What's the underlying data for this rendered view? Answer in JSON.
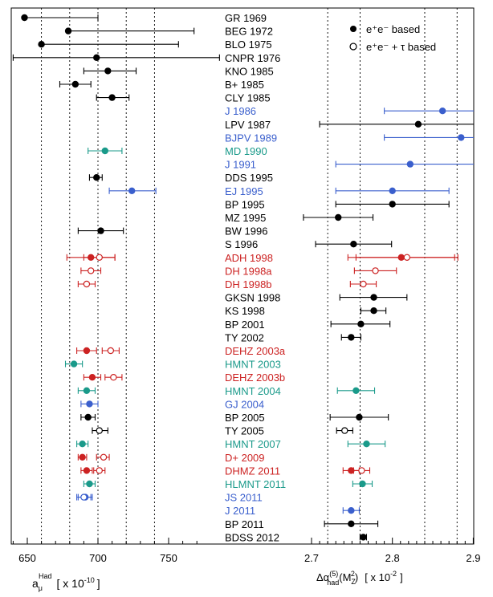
{
  "chart_data": {
    "type": "scatter",
    "panels": [
      {
        "name": "left",
        "xlabel_main": "a",
        "xlabel_sub": "μ",
        "xlabel_sup": "Had",
        "xlabel_unit": "[ x 10",
        "xlabel_unit_exp": "-10",
        "xlabel_unit_end": "]",
        "xlim": [
          640,
          770
        ],
        "ticks": [
          650,
          700,
          750
        ],
        "gridlines": [
          660,
          680,
          700,
          720,
          740
        ]
      },
      {
        "name": "right",
        "xlabel_prefix": "Δα",
        "xlabel_sup": "(5)",
        "xlabel_sub": "had",
        "xlabel_arg": "(M",
        "xlabel_arg_sub": "Z",
        "xlabel_arg_sup": "2",
        "xlabel_arg_end": ")",
        "xlabel_unit": "[ x 10",
        "xlabel_unit_exp": "-2",
        "xlabel_unit_end": "]",
        "xlim": [
          2.6,
          2.9
        ],
        "ticks": [
          2.7,
          2.8,
          2.9
        ],
        "tick_labels": [
          "2.7",
          "2.8",
          "2.9"
        ],
        "gridlines": [
          2.72,
          2.76,
          2.84,
          2.88
        ]
      }
    ],
    "legend": {
      "position": "top-right",
      "items": [
        {
          "label": "e⁺e⁻ based",
          "marker": "filled-circle"
        },
        {
          "label": "e⁺e⁻ + τ based",
          "marker": "open-circle"
        }
      ]
    },
    "series_colors": {
      "black": "#000000",
      "blue": "#3A5FCD",
      "teal": "#1A9A8A",
      "red": "#CC2222"
    },
    "entries": [
      {
        "label": "GR 1969",
        "color": "black",
        "a": [
          {
            "v": 648,
            "lo": 648,
            "hi": 700,
            "filled": true
          }
        ],
        "d": []
      },
      {
        "label": "BEG 1972",
        "color": "black",
        "a": [
          {
            "v": 679,
            "lo": 679,
            "hi": 768,
            "filled": true
          }
        ],
        "d": []
      },
      {
        "label": "BLO 1975",
        "color": "black",
        "a": [
          {
            "v": 660,
            "lo": 660,
            "hi": 757,
            "filled": true
          }
        ],
        "d": []
      },
      {
        "label": "CNPR 1976",
        "color": "black",
        "a": [
          {
            "v": 699,
            "lo": 640,
            "hi": 786,
            "filled": true
          }
        ],
        "d": []
      },
      {
        "label": "KNO 1985",
        "color": "black",
        "a": [
          {
            "v": 707,
            "lo": 690,
            "hi": 727,
            "filled": true
          }
        ],
        "d": []
      },
      {
        "label": "B+ 1985",
        "color": "black",
        "a": [
          {
            "v": 684,
            "lo": 673,
            "hi": 695,
            "filled": true
          }
        ],
        "d": []
      },
      {
        "label": "CLY 1985",
        "color": "black",
        "a": [
          {
            "v": 710,
            "lo": 699,
            "hi": 722,
            "filled": true
          }
        ],
        "d": []
      },
      {
        "label": "J 1986",
        "color": "blue",
        "a": [],
        "d": [
          {
            "v": 2.862,
            "lo": 2.79,
            "hi": 2.91,
            "filled": true
          }
        ]
      },
      {
        "label": "LPV 1987",
        "color": "black",
        "a": [],
        "d": [
          {
            "v": 2.832,
            "lo": 2.71,
            "hi": 2.91,
            "filled": true
          }
        ]
      },
      {
        "label": "BJPV 1989",
        "color": "blue",
        "a": [],
        "d": [
          {
            "v": 2.885,
            "lo": 2.79,
            "hi": 2.91,
            "filled": true
          }
        ]
      },
      {
        "label": "MD 1990",
        "color": "teal",
        "a": [
          {
            "v": 705,
            "lo": 693,
            "hi": 717,
            "filled": true
          }
        ],
        "d": []
      },
      {
        "label": "J 1991",
        "color": "blue",
        "a": [],
        "d": [
          {
            "v": 2.822,
            "lo": 2.73,
            "hi": 2.91,
            "filled": true
          }
        ]
      },
      {
        "label": "DDS 1995",
        "color": "black",
        "a": [
          {
            "v": 699,
            "lo": 694,
            "hi": 703,
            "filled": true
          }
        ],
        "d": []
      },
      {
        "label": "EJ 1995",
        "color": "blue",
        "a": [
          {
            "v": 724,
            "lo": 708,
            "hi": 741,
            "filled": true
          }
        ],
        "d": [
          {
            "v": 2.8,
            "lo": 2.73,
            "hi": 2.87,
            "filled": true
          }
        ]
      },
      {
        "label": "BP 1995",
        "color": "black",
        "a": [],
        "d": [
          {
            "v": 2.8,
            "lo": 2.73,
            "hi": 2.87,
            "filled": true
          }
        ]
      },
      {
        "label": "MZ 1995",
        "color": "black",
        "a": [],
        "d": [
          {
            "v": 2.733,
            "lo": 2.69,
            "hi": 2.776,
            "filled": true
          }
        ]
      },
      {
        "label": "BW 1996",
        "color": "black",
        "a": [
          {
            "v": 702,
            "lo": 686,
            "hi": 718,
            "filled": true
          }
        ],
        "d": []
      },
      {
        "label": "S 1996",
        "color": "black",
        "a": [],
        "d": [
          {
            "v": 2.752,
            "lo": 2.705,
            "hi": 2.799,
            "filled": true
          }
        ]
      },
      {
        "label": "ADH 1998",
        "color": "red",
        "a": [
          {
            "v": 695,
            "lo": 678,
            "hi": 712,
            "filled": true
          },
          {
            "v": 701,
            "lo": 690,
            "hi": 712,
            "filled": false
          }
        ],
        "d": [
          {
            "v": 2.811,
            "lo": 2.745,
            "hi": 2.877,
            "filled": true
          },
          {
            "v": 2.818,
            "lo": 2.755,
            "hi": 2.881,
            "filled": false
          }
        ]
      },
      {
        "label": "DH 1998a",
        "color": "red",
        "a": [
          {
            "v": 695,
            "lo": 688,
            "hi": 702,
            "filled": false
          }
        ],
        "d": [
          {
            "v": 2.779,
            "lo": 2.753,
            "hi": 2.805,
            "filled": false
          }
        ]
      },
      {
        "label": "DH 1998b",
        "color": "red",
        "a": [
          {
            "v": 692,
            "lo": 686,
            "hi": 698,
            "filled": false
          }
        ],
        "d": [
          {
            "v": 2.764,
            "lo": 2.748,
            "hi": 2.78,
            "filled": false
          }
        ]
      },
      {
        "label": "GKSN 1998",
        "color": "black",
        "a": [],
        "d": [
          {
            "v": 2.777,
            "lo": 2.735,
            "hi": 2.818,
            "filled": true
          }
        ]
      },
      {
        "label": "KS 1998",
        "color": "black",
        "a": [],
        "d": [
          {
            "v": 2.777,
            "lo": 2.761,
            "hi": 2.792,
            "filled": true
          }
        ]
      },
      {
        "label": "BP 2001",
        "color": "black",
        "a": [],
        "d": [
          {
            "v": 2.761,
            "lo": 2.724,
            "hi": 2.797,
            "filled": true
          }
        ]
      },
      {
        "label": "TY 2002",
        "color": "black",
        "a": [],
        "d": [
          {
            "v": 2.749,
            "lo": 2.737,
            "hi": 2.761,
            "filled": true
          }
        ]
      },
      {
        "label": "DEHZ 2003a",
        "color": "red",
        "a": [
          {
            "v": 692,
            "lo": 685,
            "hi": 699,
            "filled": true
          },
          {
            "v": 709,
            "lo": 703,
            "hi": 715,
            "filled": false
          }
        ],
        "d": []
      },
      {
        "label": "HMNT 2003",
        "color": "teal",
        "a": [
          {
            "v": 683,
            "lo": 677,
            "hi": 689,
            "filled": true
          }
        ],
        "d": []
      },
      {
        "label": "DEHZ 2003b",
        "color": "red",
        "a": [
          {
            "v": 696,
            "lo": 690,
            "hi": 702,
            "filled": true
          },
          {
            "v": 711,
            "lo": 705,
            "hi": 717,
            "filled": false
          }
        ],
        "d": []
      },
      {
        "label": "HMNT 2004",
        "color": "teal",
        "a": [
          {
            "v": 692,
            "lo": 686,
            "hi": 698,
            "filled": true
          }
        ],
        "d": [
          {
            "v": 2.755,
            "lo": 2.732,
            "hi": 2.778,
            "filled": true
          }
        ]
      },
      {
        "label": "GJ 2004",
        "color": "blue",
        "a": [
          {
            "v": 694,
            "lo": 688,
            "hi": 700,
            "filled": true
          }
        ],
        "d": []
      },
      {
        "label": "BP 2005",
        "color": "black",
        "a": [
          {
            "v": 693,
            "lo": 688,
            "hi": 698,
            "filled": true
          }
        ],
        "d": [
          {
            "v": 2.759,
            "lo": 2.723,
            "hi": 2.795,
            "filled": true
          }
        ]
      },
      {
        "label": "TY 2005",
        "color": "black",
        "a": [
          {
            "v": 701,
            "lo": 696,
            "hi": 707,
            "filled": false
          }
        ],
        "d": [
          {
            "v": 2.741,
            "lo": 2.731,
            "hi": 2.751,
            "filled": false
          }
        ]
      },
      {
        "label": "HMNT 2007",
        "color": "teal",
        "a": [
          {
            "v": 689,
            "lo": 685,
            "hi": 693,
            "filled": true
          }
        ],
        "d": [
          {
            "v": 2.768,
            "lo": 2.745,
            "hi": 2.791,
            "filled": true
          }
        ]
      },
      {
        "label": "D+ 2009",
        "color": "red",
        "a": [
          {
            "v": 689,
            "lo": 686,
            "hi": 692,
            "filled": true
          },
          {
            "v": 704,
            "lo": 699,
            "hi": 708,
            "filled": false
          }
        ],
        "d": []
      },
      {
        "label": "DHMZ 2011",
        "color": "red",
        "a": [
          {
            "v": 692,
            "lo": 688,
            "hi": 696,
            "filled": true
          },
          {
            "v": 701,
            "lo": 697,
            "hi": 705,
            "filled": false
          }
        ],
        "d": [
          {
            "v": 2.749,
            "lo": 2.739,
            "hi": 2.759,
            "filled": true
          },
          {
            "v": 2.762,
            "lo": 2.752,
            "hi": 2.772,
            "filled": false
          }
        ]
      },
      {
        "label": "HLMNT 2011",
        "color": "teal",
        "a": [
          {
            "v": 694,
            "lo": 690,
            "hi": 698,
            "filled": true
          }
        ],
        "d": [
          {
            "v": 2.763,
            "lo": 2.751,
            "hi": 2.775,
            "filled": true
          }
        ]
      },
      {
        "label": "JS 2011",
        "color": "blue",
        "a": [
          {
            "v": 691,
            "lo": 686,
            "hi": 696,
            "filled": true
          },
          {
            "v": 690,
            "lo": 685,
            "hi": 695,
            "filled": false
          }
        ],
        "d": []
      },
      {
        "label": "J 2011",
        "color": "blue",
        "a": [],
        "d": [
          {
            "v": 2.749,
            "lo": 2.739,
            "hi": 2.759,
            "filled": true
          }
        ]
      },
      {
        "label": "BP 2011",
        "color": "black",
        "a": [],
        "d": [
          {
            "v": 2.749,
            "lo": 2.716,
            "hi": 2.782,
            "filled": true
          }
        ]
      },
      {
        "label": "BDSS 2012",
        "color": "black",
        "a": [],
        "d": [
          {
            "v": 2.764,
            "lo": 2.76,
            "hi": 2.768,
            "filled": true
          }
        ]
      }
    ]
  }
}
